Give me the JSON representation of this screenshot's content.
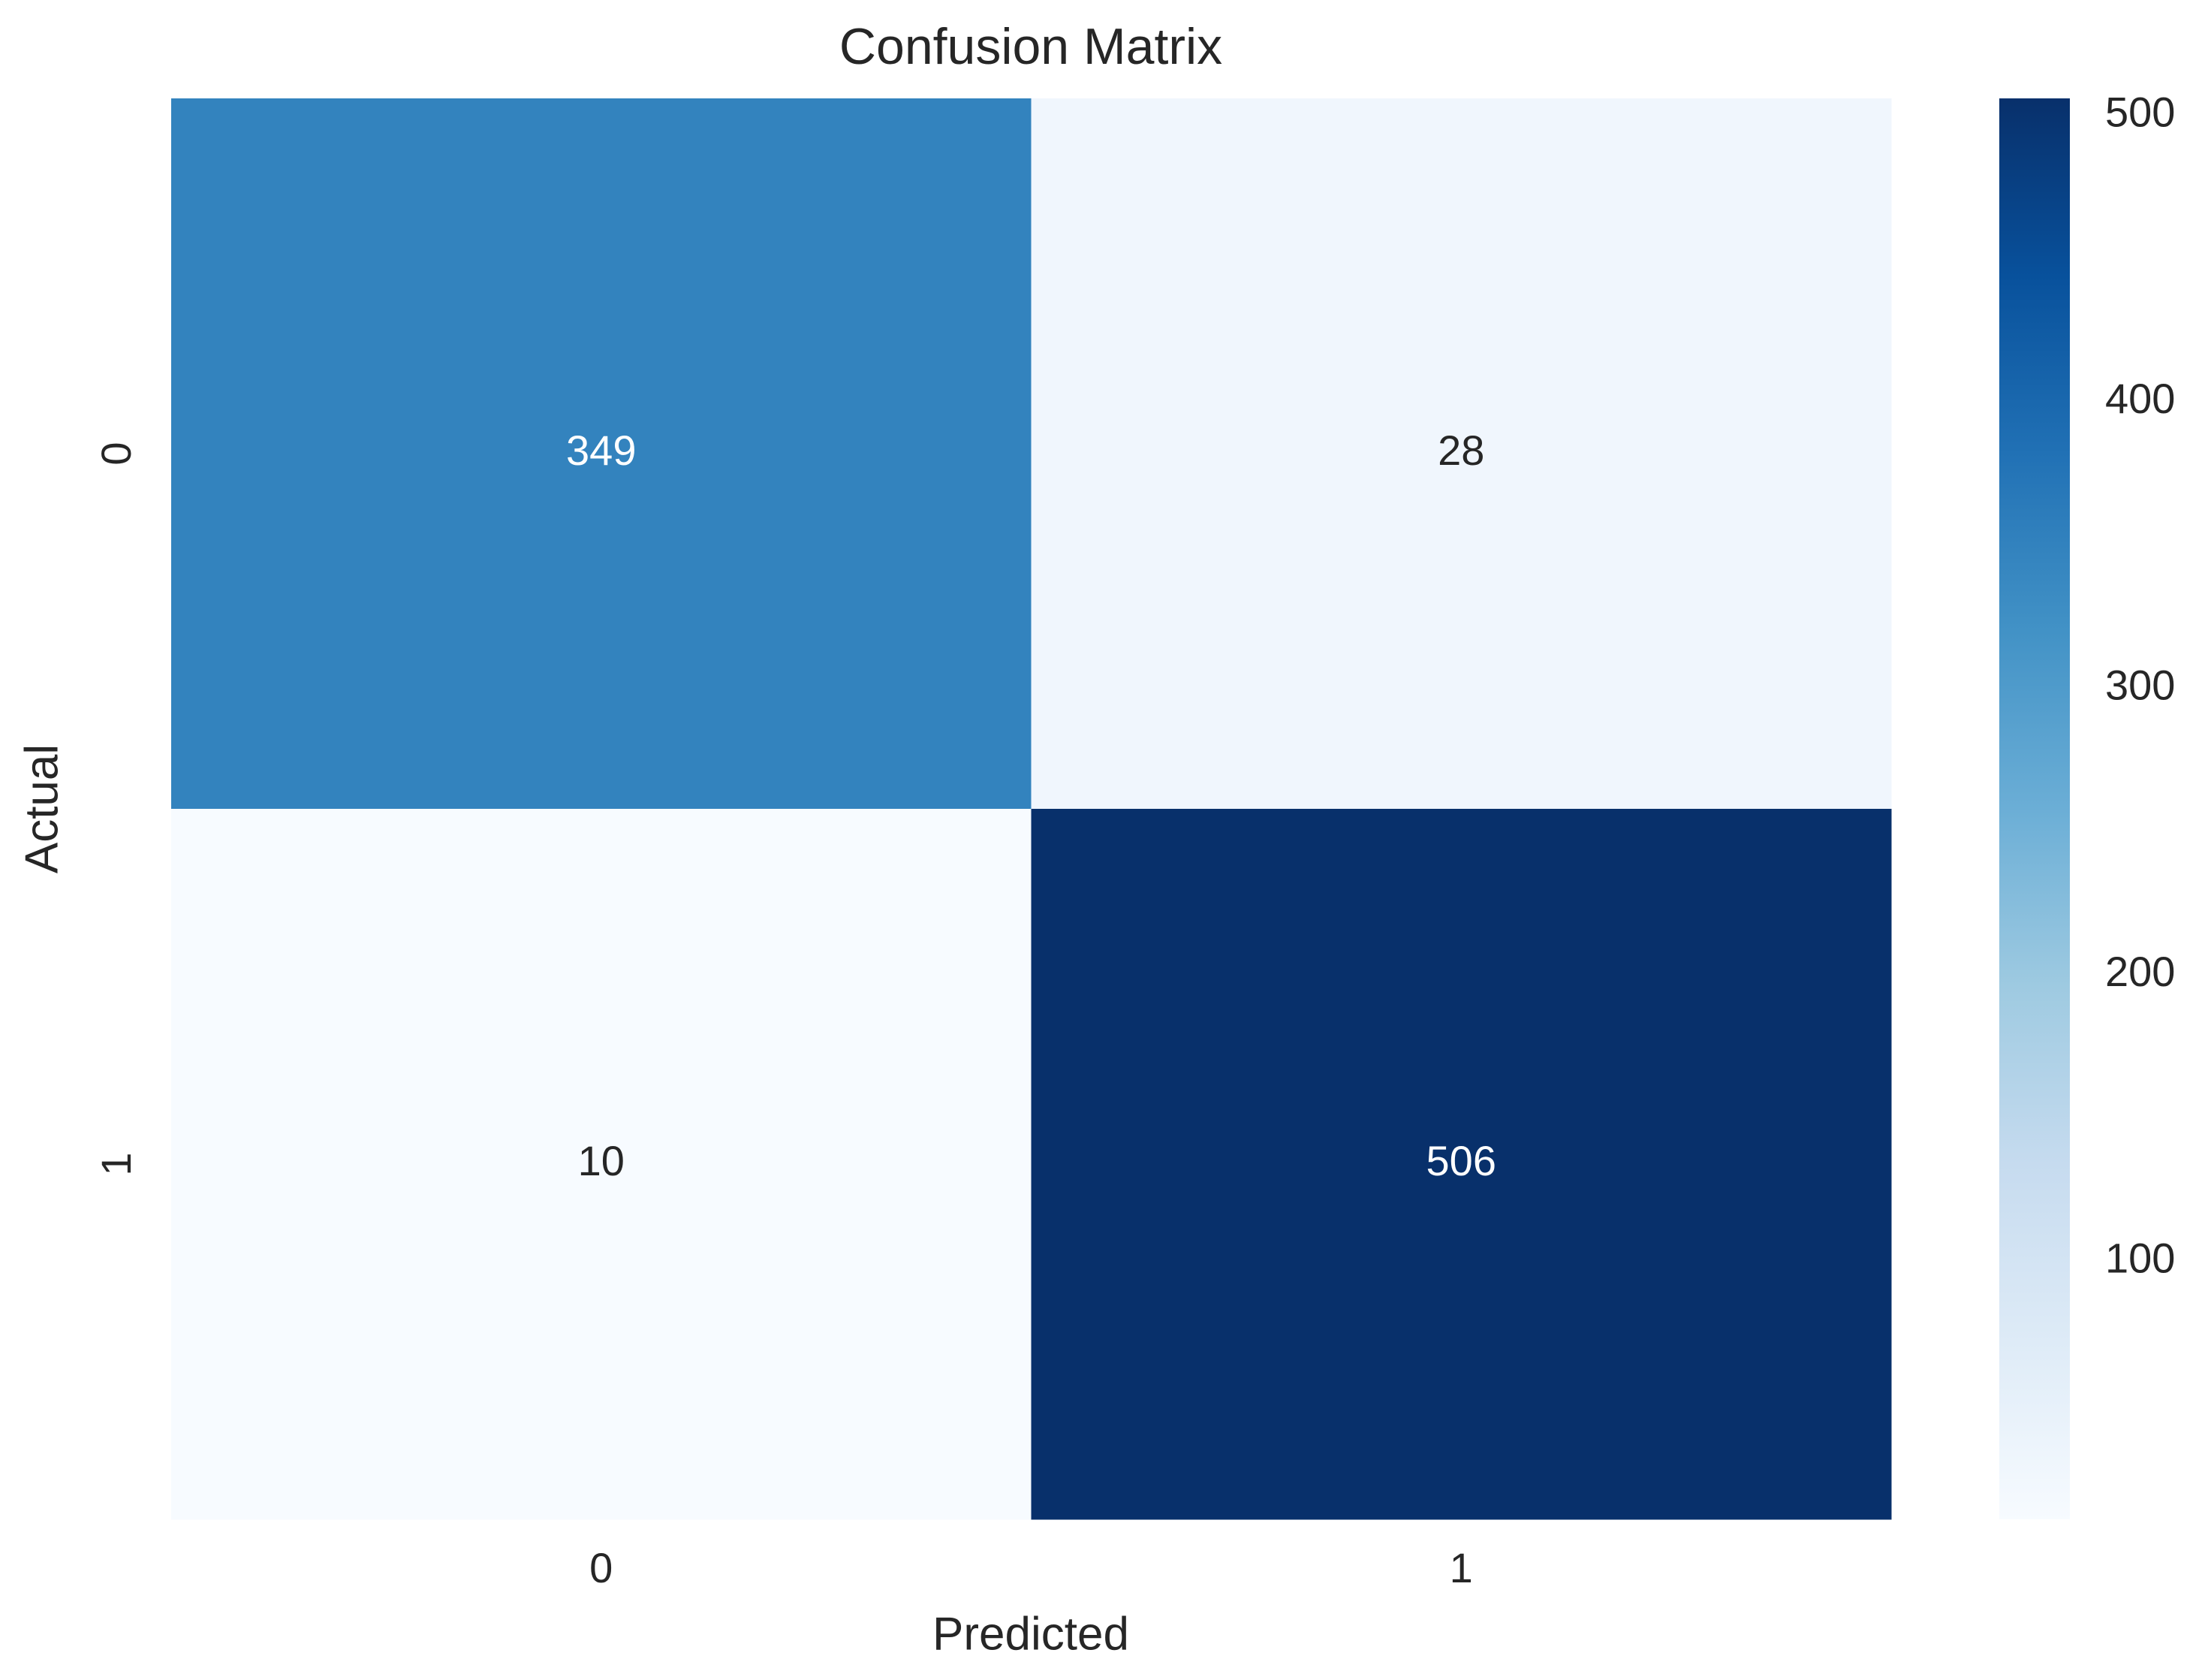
{
  "chart_data": {
    "type": "heatmap",
    "title": "Confusion Matrix",
    "xlabel": "Predicted",
    "ylabel": "Actual",
    "x_categories": [
      "0",
      "1"
    ],
    "y_categories": [
      "0",
      "1"
    ],
    "values": [
      [
        349,
        28
      ],
      [
        10,
        506
      ]
    ],
    "colormap": "Blues",
    "clim": [
      10,
      506
    ],
    "colorbar_ticks": [
      100,
      200,
      300,
      400,
      500
    ]
  }
}
